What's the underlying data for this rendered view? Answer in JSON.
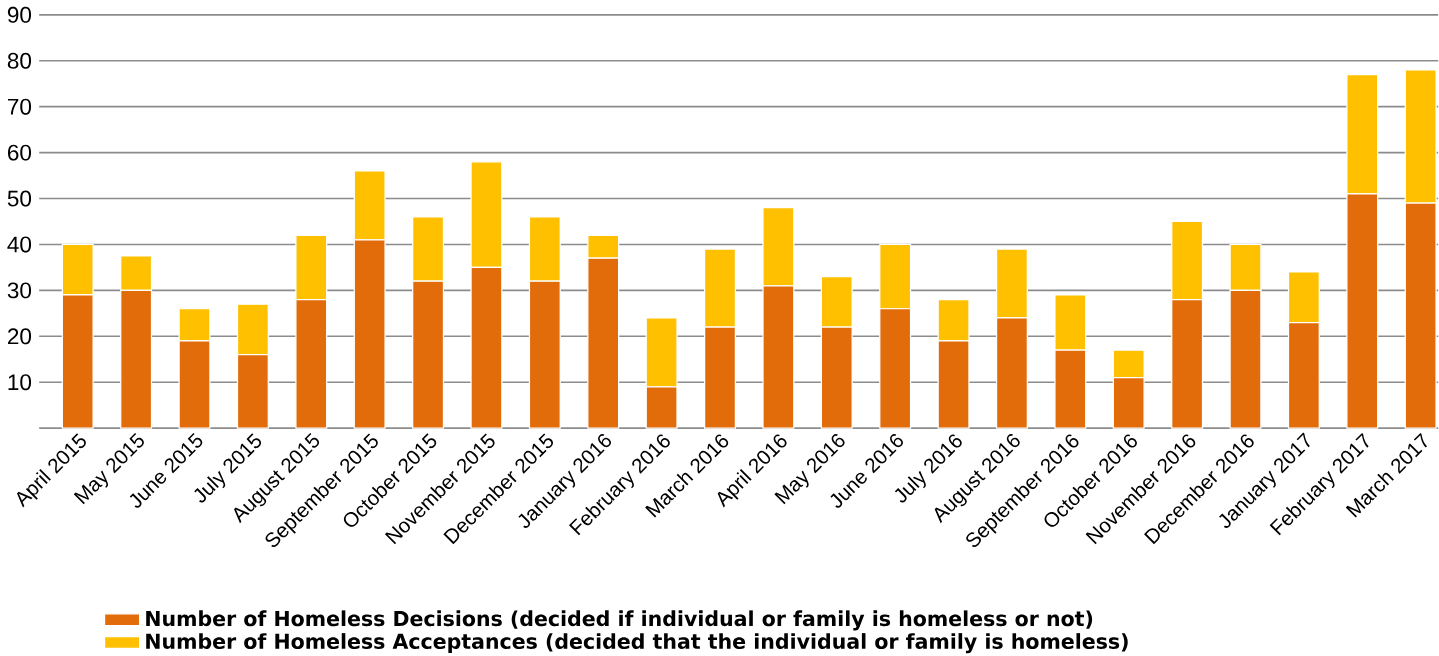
{
  "chart_data": {
    "type": "bar",
    "stacked": true,
    "grid": "y",
    "legend": "bottom",
    "categories": [
      "April 2015",
      "May 2015",
      "June 2015",
      "July 2015",
      "August 2015",
      "September 2015",
      "October 2015",
      "November 2015",
      "December 2015",
      "January 2016",
      "February 2016",
      "March 2016",
      "April 2016",
      "May 2016",
      "June 2016",
      "July 2016",
      "August 2016",
      "September 2016",
      "October 2016",
      "November 2016",
      "December 2016",
      "January 2017",
      "February 2017",
      "March 2017"
    ],
    "ylim": [
      0,
      90
    ],
    "yticks": [
      10,
      20,
      30,
      40,
      50,
      60,
      70,
      80,
      90
    ],
    "series": [
      {
        "name": "Number of Homeless Decisions (decided if individual or family is homeless or not)",
        "color": "#e36c0a",
        "values": [
          29,
          30,
          19,
          16,
          28,
          41,
          32,
          35,
          32,
          37,
          9,
          22,
          31,
          22,
          26,
          19,
          24,
          17,
          11,
          28,
          30,
          23,
          51,
          49
        ]
      },
      {
        "name": "Number of Homeless Acceptances (decided that the individual or family is homeless)",
        "color": "#ffc000",
        "values": [
          11,
          7.5,
          7,
          11,
          14,
          15,
          14,
          23,
          14,
          5,
          15,
          17,
          17,
          11,
          14,
          9,
          15,
          12,
          6,
          17,
          10,
          11,
          26,
          29
        ]
      }
    ]
  }
}
